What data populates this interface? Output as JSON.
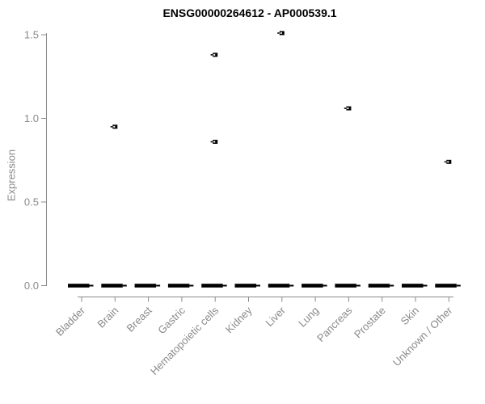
{
  "chart_data": {
    "type": "boxplot",
    "title": "ENSG00000264612 - AP000539.1",
    "xlabel": "",
    "ylabel": "Expression",
    "ylim": [
      0,
      1.5
    ],
    "yticks": [
      0.0,
      0.5,
      1.0,
      1.5
    ],
    "ytick_labels": [
      "0.0",
      "0.5",
      "1.0",
      "1.5"
    ],
    "categories": [
      "Bladder",
      "Brain",
      "Breast",
      "Gastric",
      "Hematopoietic cells",
      "Kidney",
      "Liver",
      "Lung",
      "Pancreas",
      "Prostate",
      "Skin",
      "Unknown / Other"
    ],
    "box_medians": [
      0,
      0,
      0,
      0,
      0,
      0,
      0,
      0,
      0,
      0,
      0,
      0
    ],
    "outliers": [
      {
        "category": "Brain",
        "value": 0.95
      },
      {
        "category": "Hematopoietic cells",
        "value": 1.38
      },
      {
        "category": "Hematopoietic cells",
        "value": 0.86
      },
      {
        "category": "Liver",
        "value": 1.51
      },
      {
        "category": "Pancreas",
        "value": 1.06
      },
      {
        "category": "Unknown / Other",
        "value": 0.74
      }
    ],
    "grid": false,
    "legend": false,
    "axis_style": "range-frame",
    "x_label_rotation_deg": 45,
    "colors": {
      "title": "#000000",
      "axis": "#8a8a8a",
      "tick_labels": "#8a8a8a",
      "data": "#000000",
      "background": "#ffffff"
    }
  }
}
